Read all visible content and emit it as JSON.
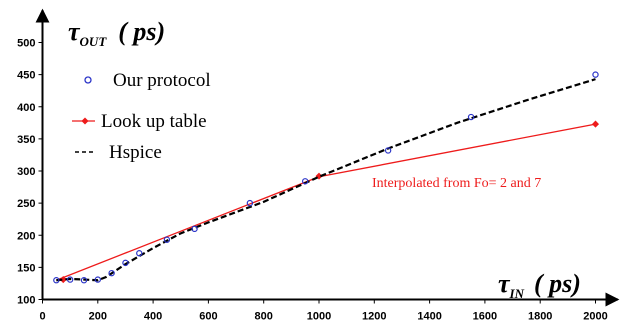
{
  "chart_data": {
    "type": "line",
    "xlabel": {
      "symbol": "τ",
      "subscript": "IN",
      "unit": "( ps)"
    },
    "ylabel": {
      "symbol": "τ",
      "subscript": "OUT",
      "unit": "( ps)"
    },
    "xlim": [
      0,
      2100
    ],
    "ylim": [
      100,
      510
    ],
    "x_ticks": [
      0,
      200,
      400,
      600,
      800,
      1000,
      1200,
      1400,
      1600,
      1800,
      2000
    ],
    "y_ticks": [
      100,
      150,
      200,
      250,
      300,
      350,
      400,
      450,
      500
    ],
    "grid": false,
    "legend_position": "top-left",
    "series": [
      {
        "name": "Our protocol",
        "style": "scatter",
        "marker": "open-circle",
        "color": "#2b34c8",
        "points": [
          [
            50,
            130
          ],
          [
            100,
            131
          ],
          [
            150,
            130
          ],
          [
            200,
            131
          ],
          [
            250,
            141
          ],
          [
            300,
            157
          ],
          [
            350,
            172
          ],
          [
            450,
            193
          ],
          [
            550,
            210
          ],
          [
            750,
            250
          ],
          [
            950,
            284
          ],
          [
            1250,
            332
          ],
          [
            1550,
            384
          ],
          [
            2000,
            450
          ]
        ]
      },
      {
        "name": "Look up table",
        "style": "line-with-markers",
        "marker": "filled-diamond",
        "color": "#ee1b1b",
        "points": [
          [
            50,
            130
          ],
          [
            1000,
            291
          ],
          [
            2000,
            373
          ]
        ],
        "marker_points": [
          [
            75,
            131
          ],
          [
            1000,
            292
          ],
          [
            2000,
            373
          ]
        ]
      },
      {
        "name": "Hspice",
        "style": "dashed-line",
        "color": "#000000",
        "points": [
          [
            50,
            130
          ],
          [
            100,
            132
          ],
          [
            200,
            130
          ],
          [
            230,
            135
          ],
          [
            300,
            155
          ],
          [
            400,
            180
          ],
          [
            500,
            203
          ],
          [
            600,
            220
          ],
          [
            800,
            252
          ],
          [
            1000,
            291
          ],
          [
            1250,
            335
          ],
          [
            1500,
            375
          ],
          [
            1750,
            410
          ],
          [
            2000,
            443
          ]
        ]
      }
    ],
    "annotations": [
      {
        "text": "Interpolated from Fo= 2 and 7",
        "color": "#ee1b1b"
      }
    ]
  }
}
